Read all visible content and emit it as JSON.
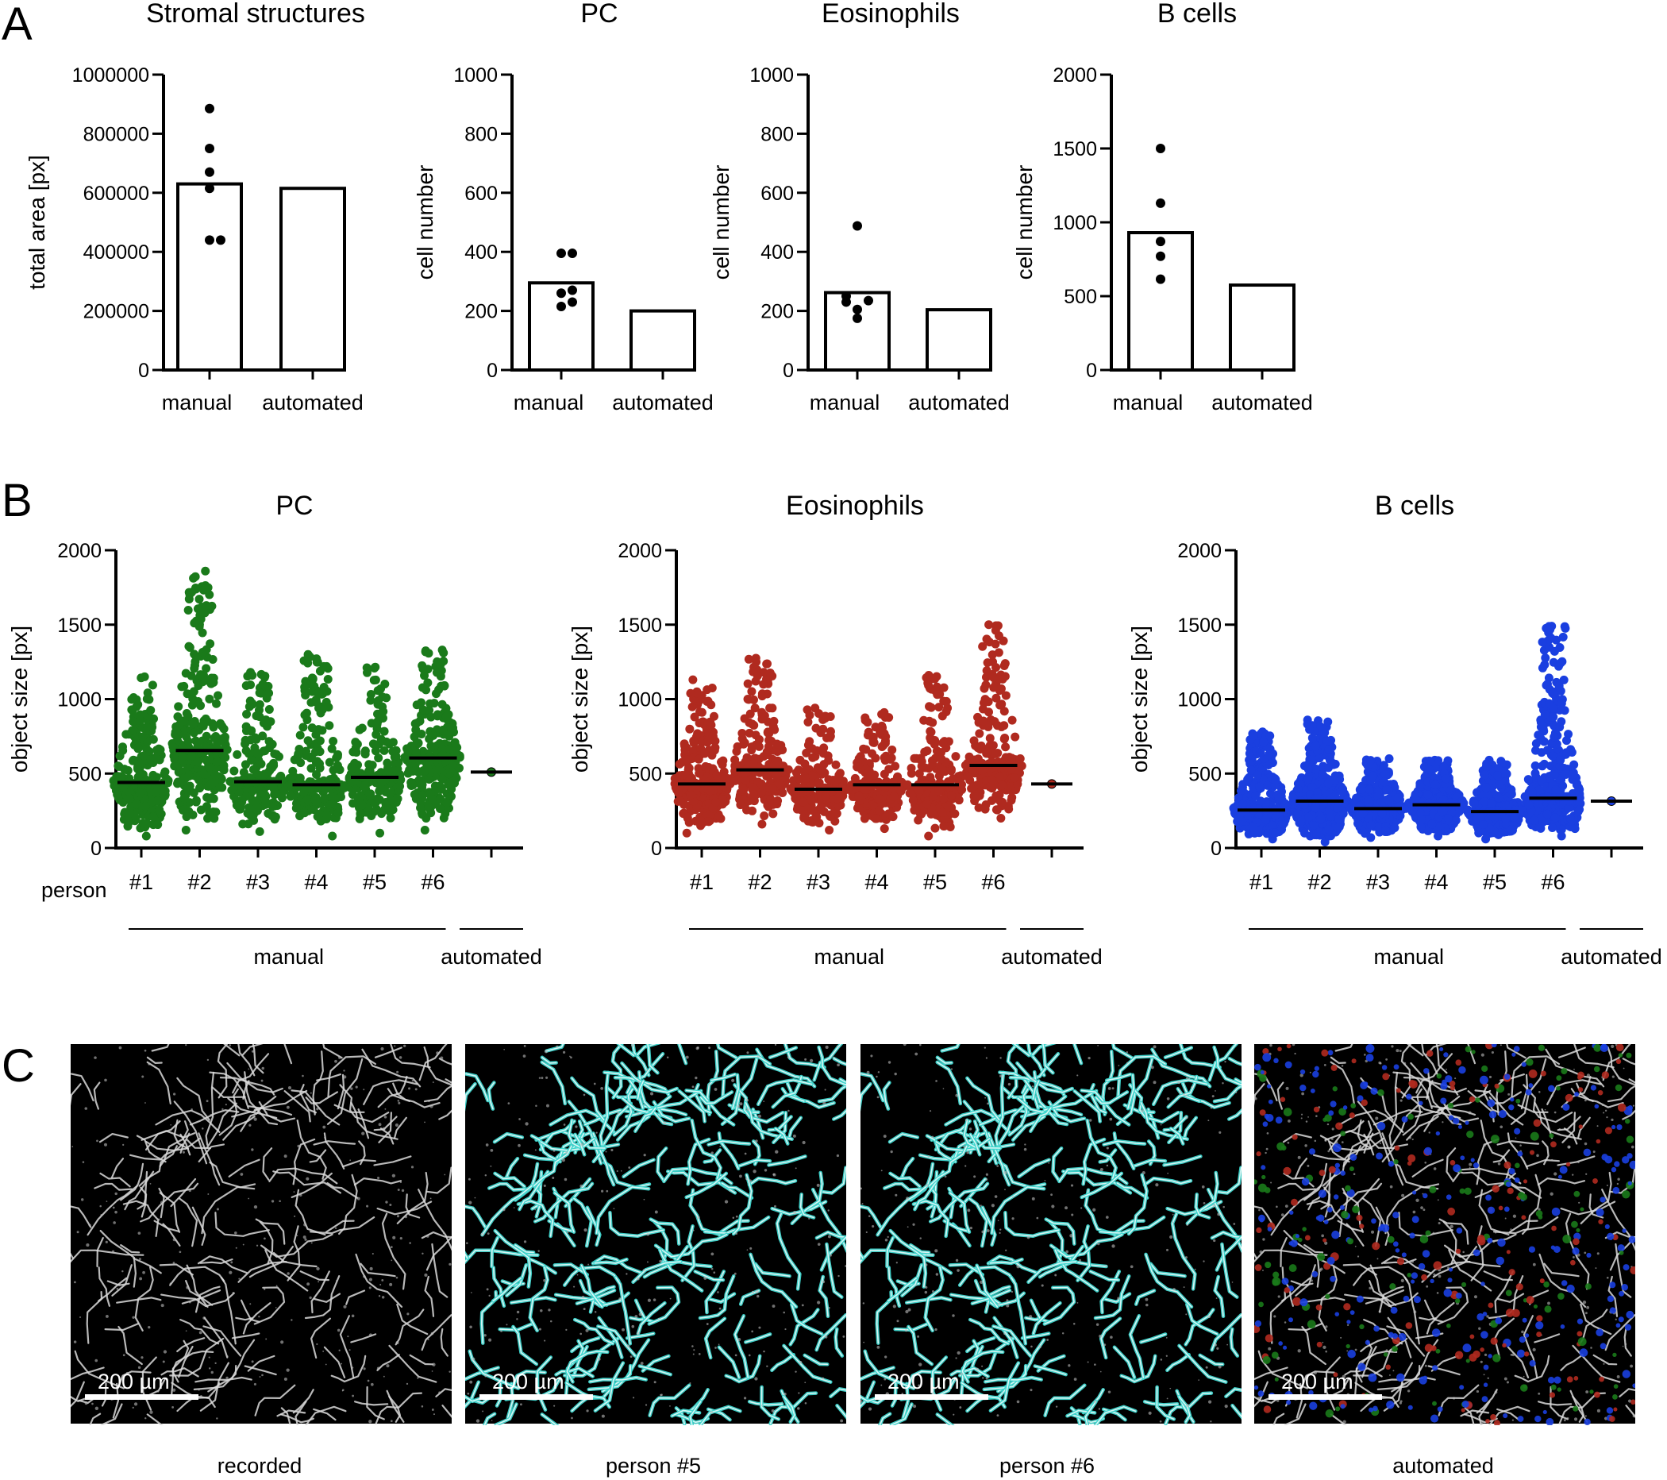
{
  "panel_labels": [
    "A",
    "B",
    "C"
  ],
  "panel_b_row_label": "person",
  "chart_data": [
    {
      "id": "A1",
      "type": "bar",
      "title": "Stromal structures",
      "ylabel": "total area  [px]",
      "ylim": [
        0,
        1000000
      ],
      "yticks": [
        0,
        200000,
        400000,
        600000,
        800000,
        1000000
      ],
      "categories": [
        "manual",
        "automated"
      ],
      "values": [
        630000,
        615000
      ],
      "points": [
        [
          440000,
          440000,
          615000,
          670000,
          750000,
          885000
        ]
      ]
    },
    {
      "id": "A2",
      "type": "bar",
      "title": "PC",
      "ylabel": "cell number",
      "ylim": [
        0,
        1000
      ],
      "yticks": [
        0,
        200,
        400,
        600,
        800,
        1000
      ],
      "categories": [
        "manual",
        "automated"
      ],
      "values": [
        295,
        200
      ],
      "points": [
        [
          215,
          230,
          260,
          270,
          395,
          395
        ]
      ]
    },
    {
      "id": "A3",
      "type": "bar",
      "title": "Eosinophils",
      "ylabel": "cell number",
      "ylim": [
        0,
        1000
      ],
      "yticks": [
        0,
        200,
        400,
        600,
        800,
        1000
      ],
      "categories": [
        "manual",
        "automated"
      ],
      "values": [
        262,
        204
      ],
      "points": [
        [
          175,
          205,
          230,
          235,
          250,
          488
        ]
      ]
    },
    {
      "id": "A4",
      "type": "bar",
      "title": "B cells",
      "ylabel": "cell number",
      "ylim": [
        0,
        2000
      ],
      "yticks": [
        0,
        500,
        1000,
        1500,
        2000
      ],
      "categories": [
        "manual",
        "automated"
      ],
      "values": [
        930,
        575
      ],
      "points": [
        [
          615,
          770,
          870,
          1130,
          1500
        ]
      ]
    },
    {
      "id": "B1",
      "type": "scatter",
      "title": "PC",
      "ylabel": "object size [px]",
      "ylim": [
        0,
        2000
      ],
      "yticks": [
        0,
        500,
        1000,
        1500,
        2000
      ],
      "categories": [
        "#1",
        "#2",
        "#3",
        "#4",
        "#5",
        "#6",
        ""
      ],
      "group_labels": [
        "manual",
        "automated"
      ],
      "color": "#1a7a1a",
      "medians": [
        440,
        655,
        445,
        425,
        475,
        605,
        510
      ],
      "ranges": [
        [
          80,
          1150
        ],
        [
          120,
          1860
        ],
        [
          110,
          1180
        ],
        [
          80,
          1300
        ],
        [
          100,
          1215
        ],
        [
          120,
          1330
        ],
        [
          510,
          510
        ]
      ],
      "counts": [
        260,
        300,
        200,
        210,
        190,
        260,
        1
      ]
    },
    {
      "id": "B2",
      "type": "scatter",
      "title": "Eosinophils",
      "ylabel": "object size [px]",
      "ylim": [
        0,
        2000
      ],
      "yticks": [
        0,
        500,
        1000,
        1500,
        2000
      ],
      "categories": [
        "#1",
        "#2",
        "#3",
        "#4",
        "#5",
        "#6",
        ""
      ],
      "group_labels": [
        "manual",
        "automated"
      ],
      "color": "#b02a1f",
      "medians": [
        430,
        525,
        395,
        425,
        425,
        555,
        430
      ],
      "ranges": [
        [
          100,
          1130
        ],
        [
          160,
          1275
        ],
        [
          120,
          940
        ],
        [
          130,
          910
        ],
        [
          80,
          1160
        ],
        [
          200,
          1500
        ],
        [
          430,
          430
        ]
      ],
      "counts": [
        280,
        240,
        200,
        220,
        200,
        230,
        1
      ]
    },
    {
      "id": "B3",
      "type": "scatter",
      "title": "B cells",
      "ylabel": "object size [px]",
      "ylim": [
        0,
        2000
      ],
      "yticks": [
        0,
        500,
        1000,
        1500,
        2000
      ],
      "categories": [
        "#1",
        "#2",
        "#3",
        "#4",
        "#5",
        "#6",
        ""
      ],
      "group_labels": [
        "manual",
        "automated"
      ],
      "color": "#1a3fe0",
      "medians": [
        255,
        315,
        265,
        290,
        245,
        335,
        315
      ],
      "ranges": [
        [
          60,
          780
        ],
        [
          40,
          860
        ],
        [
          70,
          600
        ],
        [
          80,
          590
        ],
        [
          60,
          590
        ],
        [
          80,
          1490
        ],
        [
          315,
          315
        ]
      ],
      "counts": [
        420,
        500,
        350,
        380,
        400,
        420,
        1
      ]
    }
  ],
  "micrographs": [
    {
      "caption": "recorded",
      "scale_label": "200 µm",
      "overlay": "none"
    },
    {
      "caption": "person #5",
      "scale_label": "200 µm",
      "overlay": "cyan"
    },
    {
      "caption": "person #6",
      "scale_label": "200 µm",
      "overlay": "cyan"
    },
    {
      "caption": "automated",
      "scale_label": "200 µm",
      "overlay": "multi"
    }
  ],
  "colors": {
    "pc": "#1a7a1a",
    "eosinophils": "#b02a1f",
    "bcells": "#1a3fe0",
    "outline": "#40d8d0",
    "stroma": "#e8e8e8"
  }
}
